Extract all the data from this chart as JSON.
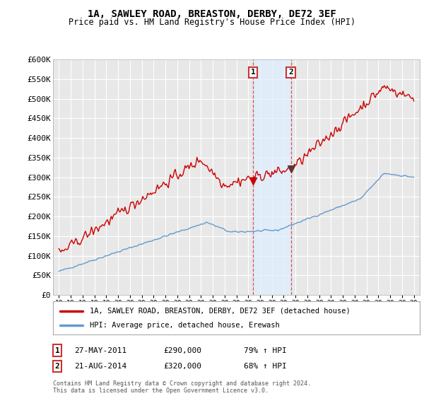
{
  "title": "1A, SAWLEY ROAD, BREASTON, DERBY, DE72 3EF",
  "subtitle": "Price paid vs. HM Land Registry's House Price Index (HPI)",
  "ytick_values": [
    0,
    50000,
    100000,
    150000,
    200000,
    250000,
    300000,
    350000,
    400000,
    450000,
    500000,
    550000,
    600000
  ],
  "ytick_labels": [
    "£0",
    "£50K",
    "£100K",
    "£150K",
    "£200K",
    "£250K",
    "£300K",
    "£350K",
    "£400K",
    "£450K",
    "£500K",
    "£550K",
    "£600K"
  ],
  "sale1_date": "27-MAY-2011",
  "sale1_price": 290000,
  "sale1_hpi_text": "79% ↑ HPI",
  "sale1_x": 2011.4,
  "sale2_date": "21-AUG-2014",
  "sale2_price": 320000,
  "sale2_hpi_text": "68% ↑ HPI",
  "sale2_x": 2014.6,
  "legend_line1": "1A, SAWLEY ROAD, BREASTON, DERBY, DE72 3EF (detached house)",
  "legend_line2": "HPI: Average price, detached house, Erewash",
  "footer": "Contains HM Land Registry data © Crown copyright and database right 2024.\nThis data is licensed under the Open Government Licence v3.0.",
  "line_color_red": "#cc0000",
  "line_color_blue": "#6699cc",
  "background_color": "#ffffff",
  "plot_bg_color": "#e8e8e8",
  "highlight_box_color": "#ddeeff",
  "grid_color": "#ffffff",
  "xmin": 1994.5,
  "xmax": 2025.5,
  "ymin": 0,
  "ymax": 600000
}
